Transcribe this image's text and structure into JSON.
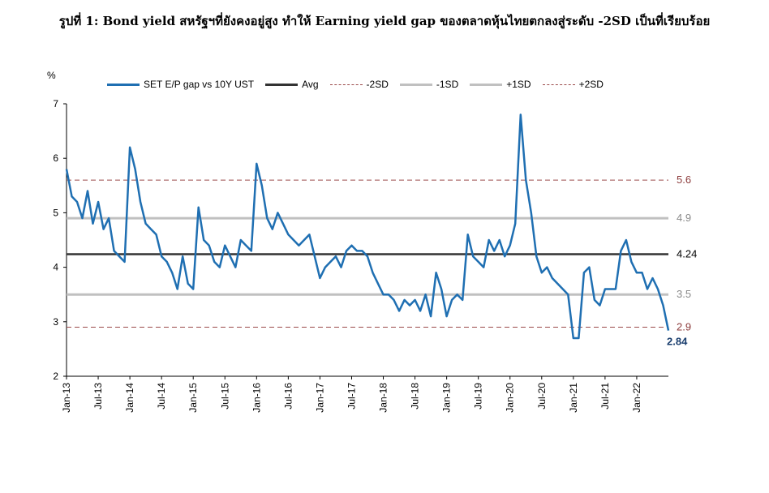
{
  "title": "รูปที่ 1: Bond yield สหรัฐฯที่ยังคงอยู่สูง ทำให้ Earning yield gap ของตลาดหุ้นไทยตกลงสู่ระดับ -2SD เป็นที่เรียบร้อย",
  "chart_data": {
    "type": "line",
    "ylabel": "%",
    "ylim": [
      2,
      7
    ],
    "yticks": [
      "2",
      "3",
      "4",
      "5",
      "6",
      "7"
    ],
    "xlim": [
      "2013-01",
      "2022-07"
    ],
    "xticks": [
      "Jan-13",
      "Jul-13",
      "Jan-14",
      "Jul-14",
      "Jan-15",
      "Jul-15",
      "Jan-16",
      "Jul-16",
      "Jan-17",
      "Jul-17",
      "Jan-18",
      "Jul-18",
      "Jan-19",
      "Jul-19",
      "Jan-20",
      "Jul-20",
      "Jan-21",
      "Jul-21",
      "Jan-22"
    ],
    "colors": {
      "series": "#1f6fb2",
      "avg": "#333333",
      "sd2": "#9b4a4a",
      "sd1": "#c0c0c0"
    },
    "series": [
      {
        "name": "SET E/P gap vs 10Y UST",
        "x": [
          "2013-01",
          "2013-02",
          "2013-03",
          "2013-04",
          "2013-05",
          "2013-06",
          "2013-07",
          "2013-08",
          "2013-09",
          "2013-10",
          "2013-11",
          "2013-12",
          "2014-01",
          "2014-02",
          "2014-03",
          "2014-04",
          "2014-05",
          "2014-06",
          "2014-07",
          "2014-08",
          "2014-09",
          "2014-10",
          "2014-11",
          "2014-12",
          "2015-01",
          "2015-02",
          "2015-03",
          "2015-04",
          "2015-05",
          "2015-06",
          "2015-07",
          "2015-08",
          "2015-09",
          "2015-10",
          "2015-11",
          "2015-12",
          "2016-01",
          "2016-02",
          "2016-03",
          "2016-04",
          "2016-05",
          "2016-06",
          "2016-07",
          "2016-08",
          "2016-09",
          "2016-10",
          "2016-11",
          "2016-12",
          "2017-01",
          "2017-02",
          "2017-03",
          "2017-04",
          "2017-05",
          "2017-06",
          "2017-07",
          "2017-08",
          "2017-09",
          "2017-10",
          "2017-11",
          "2017-12",
          "2018-01",
          "2018-02",
          "2018-03",
          "2018-04",
          "2018-05",
          "2018-06",
          "2018-07",
          "2018-08",
          "2018-09",
          "2018-10",
          "2018-11",
          "2018-12",
          "2019-01",
          "2019-02",
          "2019-03",
          "2019-04",
          "2019-05",
          "2019-06",
          "2019-07",
          "2019-08",
          "2019-09",
          "2019-10",
          "2019-11",
          "2019-12",
          "2020-01",
          "2020-02",
          "2020-03",
          "2020-04",
          "2020-05",
          "2020-06",
          "2020-07",
          "2020-08",
          "2020-09",
          "2020-10",
          "2020-11",
          "2020-12",
          "2021-01",
          "2021-02",
          "2021-03",
          "2021-04",
          "2021-05",
          "2021-06",
          "2021-07",
          "2021-08",
          "2021-09",
          "2021-10",
          "2021-11",
          "2021-12",
          "2022-01",
          "2022-02",
          "2022-03",
          "2022-04",
          "2022-05",
          "2022-06",
          "2022-07"
        ],
        "y": [
          5.8,
          5.3,
          5.2,
          4.9,
          5.4,
          4.8,
          5.2,
          4.7,
          4.9,
          4.3,
          4.2,
          4.1,
          6.2,
          5.8,
          5.2,
          4.8,
          4.7,
          4.6,
          4.2,
          4.1,
          3.9,
          3.6,
          4.2,
          3.7,
          3.6,
          5.1,
          4.5,
          4.4,
          4.1,
          4.0,
          4.4,
          4.2,
          4.0,
          4.5,
          4.4,
          4.3,
          5.9,
          5.5,
          4.9,
          4.7,
          5.0,
          4.8,
          4.6,
          4.5,
          4.4,
          4.5,
          4.6,
          4.2,
          3.8,
          4.0,
          4.1,
          4.2,
          4.0,
          4.3,
          4.4,
          4.3,
          4.3,
          4.2,
          3.9,
          3.7,
          3.5,
          3.5,
          3.4,
          3.2,
          3.4,
          3.3,
          3.4,
          3.2,
          3.5,
          3.1,
          3.9,
          3.6,
          3.1,
          3.4,
          3.5,
          3.4,
          4.6,
          4.2,
          4.1,
          4.0,
          4.5,
          4.3,
          4.5,
          4.2,
          4.4,
          4.8,
          6.8,
          5.6,
          5.0,
          4.2,
          3.9,
          4.0,
          3.8,
          3.7,
          3.6,
          3.5,
          2.7,
          2.7,
          3.9,
          4.0,
          3.4,
          3.3,
          3.6,
          3.6,
          3.6,
          4.3,
          4.5,
          4.1,
          3.9,
          3.9,
          3.6,
          3.8,
          3.6,
          3.3,
          2.84
        ]
      }
    ],
    "reference_lines": [
      {
        "name": "Avg",
        "value": 4.24,
        "label": "4.24"
      },
      {
        "name": "-2SD",
        "value": 2.9,
        "label": "2.9"
      },
      {
        "name": "-1SD",
        "value": 3.5,
        "label": "3.5"
      },
      {
        "name": "+1SD",
        "value": 4.9,
        "label": "4.9"
      },
      {
        "name": "+2SD",
        "value": 5.6,
        "label": "5.6"
      }
    ],
    "last_value_label": "2.84",
    "legend_position": "top",
    "grid": false
  }
}
